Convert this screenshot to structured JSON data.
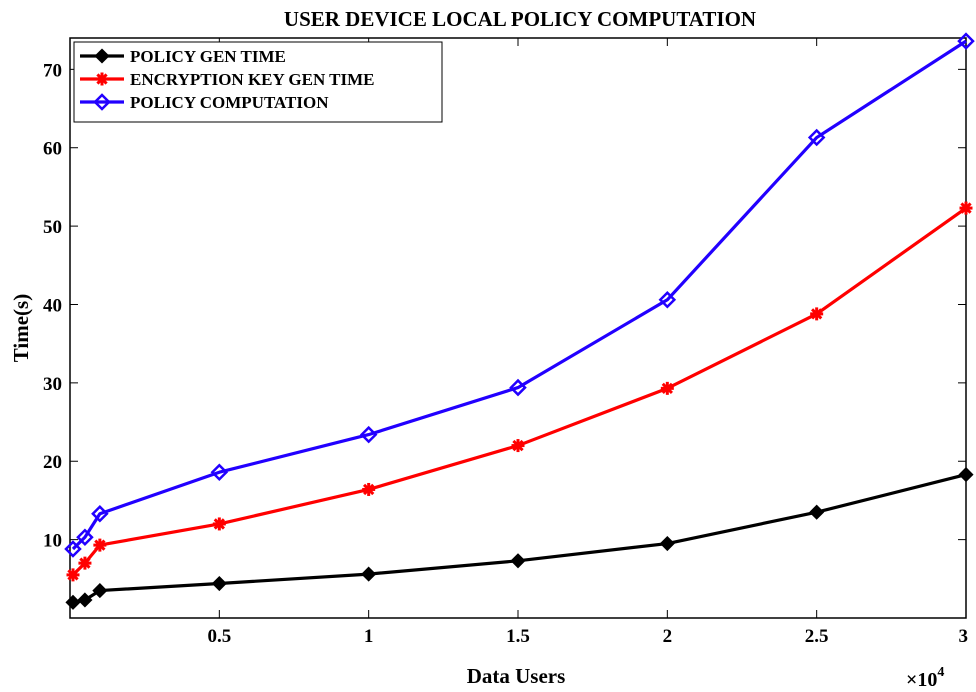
{
  "chart_data": {
    "type": "line",
    "title": "USER DEVICE LOCAL POLICY COMPUTATION",
    "xlabel": "Data Users",
    "ylabel": "Time(s)",
    "x_multiplier_label": "×10",
    "x_multiplier_exponent": "4",
    "xlim": [
      0,
      3
    ],
    "ylim": [
      0,
      74
    ],
    "xticks": [
      0.5,
      1,
      1.5,
      2,
      2.5,
      3
    ],
    "xtick_labels": [
      "0.5",
      "1",
      "1.5",
      "2",
      "2.5",
      "3"
    ],
    "yticks": [
      10,
      20,
      30,
      40,
      50,
      60,
      70
    ],
    "ytick_labels": [
      "10",
      "20",
      "30",
      "40",
      "50",
      "60",
      "70"
    ],
    "grid": false,
    "legend_position": "top-left",
    "x": [
      0.01,
      0.05,
      0.1,
      0.5,
      1,
      1.5,
      2,
      2.5,
      3
    ],
    "series": [
      {
        "name": "POLICY GEN TIME",
        "color": "#000000",
        "marker": "diamond",
        "values": [
          2.0,
          2.3,
          3.5,
          4.4,
          5.6,
          7.3,
          9.5,
          13.5,
          18.3
        ]
      },
      {
        "name": "ENCRYPTION KEY GEN TIME",
        "color": "#ff0000",
        "marker": "star",
        "values": [
          5.5,
          7.0,
          9.3,
          12.0,
          16.4,
          22.0,
          29.3,
          38.8,
          52.3
        ]
      },
      {
        "name": "POLICY COMPUTATION",
        "color": "#2200ff",
        "marker": "diamond-open",
        "values": [
          8.8,
          10.3,
          13.3,
          18.6,
          23.4,
          29.4,
          40.6,
          61.3,
          73.6
        ]
      }
    ]
  }
}
